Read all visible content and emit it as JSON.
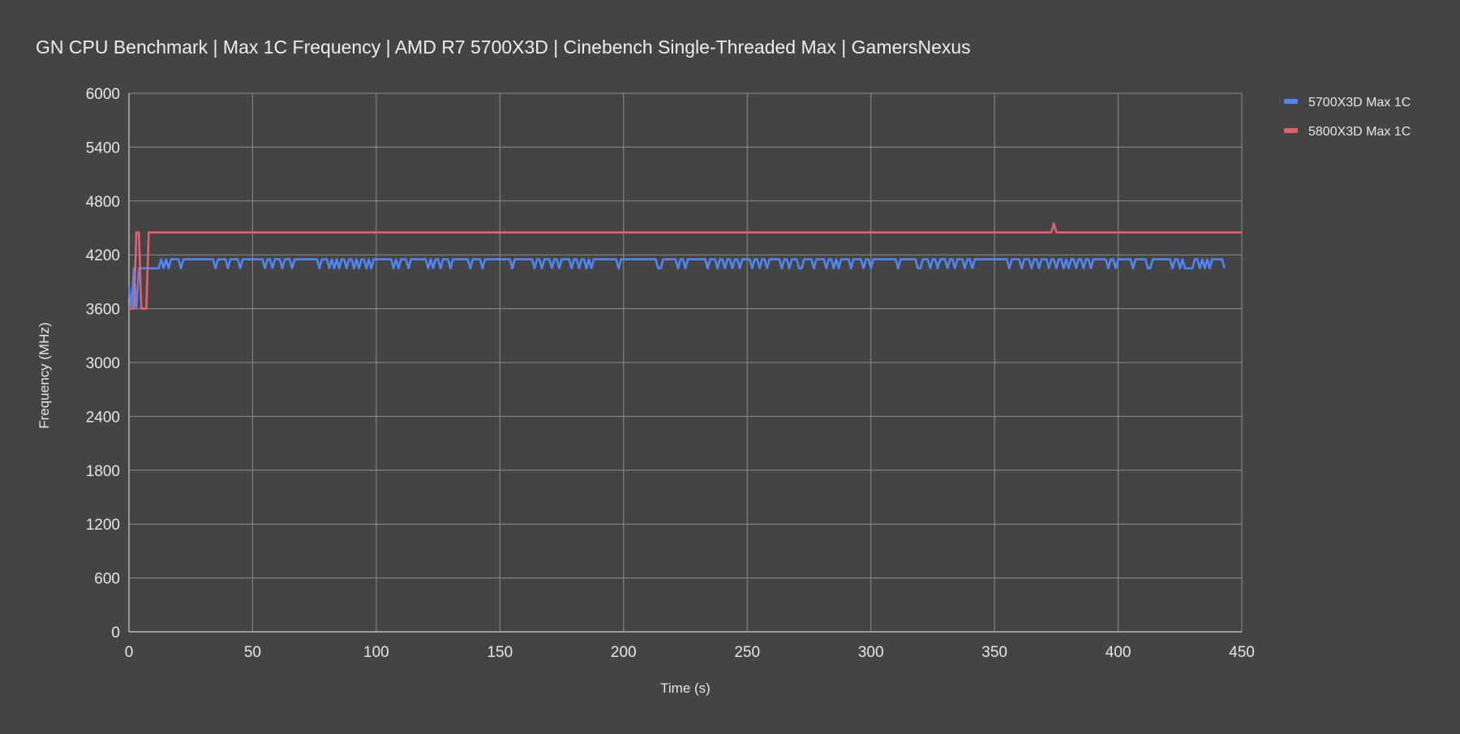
{
  "chart_data": {
    "type": "line",
    "title": "GN CPU Benchmark | Max 1C Frequency | AMD R7 5700X3D | Cinebench Single-Threaded Max | GamersNexus",
    "xlabel": "Time (s)",
    "ylabel": "Frequency (MHz)",
    "xlim": [
      0,
      450
    ],
    "ylim": [
      0,
      6000
    ],
    "x_ticks": [
      0,
      50,
      100,
      150,
      200,
      250,
      300,
      350,
      400,
      450
    ],
    "y_ticks": [
      0,
      600,
      1200,
      1800,
      2400,
      3000,
      3600,
      4200,
      4800,
      5400,
      6000
    ],
    "grid": true,
    "legend_position": "top-right",
    "series": [
      {
        "name": "5700X3D Max 1C",
        "color": "#4f86f7",
        "x_start": 0,
        "x_step": 1,
        "values": [
          3850,
          3600,
          4050,
          3600,
          4050,
          4050,
          4050,
          4050,
          4050,
          4050,
          4050,
          4050,
          4050,
          4150,
          4050,
          4150,
          4050,
          4150,
          4150,
          4150,
          4150,
          4050,
          4150,
          4150,
          4150,
          4150,
          4150,
          4150,
          4150,
          4150,
          4150,
          4150,
          4150,
          4150,
          4150,
          4050,
          4150,
          4150,
          4150,
          4150,
          4050,
          4150,
          4150,
          4150,
          4150,
          4050,
          4150,
          4150,
          4150,
          4150,
          4150,
          4150,
          4150,
          4150,
          4150,
          4050,
          4150,
          4150,
          4050,
          4150,
          4150,
          4150,
          4050,
          4150,
          4150,
          4150,
          4050,
          4150,
          4150,
          4150,
          4150,
          4150,
          4150,
          4150,
          4150,
          4150,
          4150,
          4050,
          4150,
          4150,
          4150,
          4050,
          4150,
          4050,
          4150,
          4050,
          4150,
          4150,
          4050,
          4150,
          4150,
          4050,
          4150,
          4050,
          4150,
          4150,
          4050,
          4150,
          4050,
          4150,
          4150,
          4150,
          4150,
          4150,
          4150,
          4150,
          4150,
          4050,
          4150,
          4050,
          4150,
          4150,
          4150,
          4050,
          4150,
          4150,
          4150,
          4150,
          4150,
          4150,
          4150,
          4050,
          4150,
          4050,
          4150,
          4150,
          4050,
          4150,
          4150,
          4150,
          4050,
          4150,
          4150,
          4150,
          4150,
          4150,
          4150,
          4150,
          4050,
          4150,
          4150,
          4150,
          4150,
          4050,
          4150,
          4150,
          4150,
          4150,
          4150,
          4150,
          4150,
          4150,
          4150,
          4150,
          4150,
          4050,
          4150,
          4150,
          4150,
          4150,
          4150,
          4150,
          4150,
          4150,
          4050,
          4150,
          4150,
          4050,
          4150,
          4150,
          4150,
          4050,
          4150,
          4150,
          4050,
          4150,
          4150,
          4150,
          4150,
          4050,
          4150,
          4150,
          4050,
          4150,
          4150,
          4050,
          4150,
          4050,
          4150,
          4150,
          4150,
          4150,
          4150,
          4150,
          4150,
          4150,
          4150,
          4150,
          4050,
          4150,
          4150,
          4150,
          4150,
          4150,
          4150,
          4150,
          4150,
          4150,
          4150,
          4150,
          4150,
          4150,
          4150,
          4150,
          4050,
          4050,
          4150,
          4150,
          4150,
          4150,
          4150,
          4150,
          4050,
          4150,
          4150,
          4050,
          4150,
          4150,
          4150,
          4150,
          4150,
          4150,
          4150,
          4150,
          4050,
          4150,
          4150,
          4150,
          4050,
          4150,
          4150,
          4050,
          4150,
          4150,
          4050,
          4150,
          4150,
          4050,
          4150,
          4150,
          4150,
          4150,
          4050,
          4150,
          4150,
          4050,
          4150,
          4150,
          4050,
          4150,
          4150,
          4150,
          4150,
          4150,
          4050,
          4150,
          4150,
          4050,
          4150,
          4150,
          4150,
          4050,
          4050,
          4150,
          4150,
          4150,
          4150,
          4050,
          4150,
          4150,
          4150,
          4150,
          4050,
          4150,
          4150,
          4050,
          4150,
          4050,
          4150,
          4150,
          4150,
          4150,
          4050,
          4150,
          4150,
          4150,
          4150,
          4050,
          4150,
          4150,
          4050,
          4150,
          4150,
          4150,
          4150,
          4150,
          4150,
          4150,
          4150,
          4150,
          4150,
          4050,
          4150,
          4150,
          4150,
          4150,
          4150,
          4150,
          4150,
          4050,
          4050,
          4150,
          4150,
          4150,
          4050,
          4150,
          4150,
          4050,
          4150,
          4150,
          4150,
          4050,
          4150,
          4150,
          4050,
          4150,
          4150,
          4150,
          4050,
          4150,
          4150,
          4050,
          4150,
          4150,
          4150,
          4150,
          4150,
          4150,
          4150,
          4150,
          4150,
          4150,
          4150,
          4150,
          4150,
          4150,
          4050,
          4150,
          4150,
          4150,
          4150,
          4050,
          4150,
          4150,
          4150,
          4050,
          4150,
          4150,
          4050,
          4150,
          4150,
          4150,
          4050,
          4150,
          4150,
          4050,
          4150,
          4150,
          4050,
          4150,
          4050,
          4150,
          4150,
          4050,
          4150,
          4150,
          4050,
          4150,
          4150,
          4050,
          4150,
          4150,
          4150,
          4150,
          4150,
          4150,
          4050,
          4150,
          4150,
          4050,
          4150,
          4150,
          4150,
          4150,
          4150,
          4150,
          4050,
          4150,
          4150,
          4150,
          4150,
          4150,
          4050,
          4050,
          4150,
          4150,
          4150,
          4150,
          4150,
          4150,
          4150,
          4150,
          4050,
          4150,
          4150,
          4050,
          4150,
          4050,
          4050,
          4050,
          4050,
          4150,
          4150,
          4050,
          4150,
          4050,
          4150,
          4050,
          4150,
          4150,
          4150,
          4150,
          4150,
          4050
        ]
      },
      {
        "name": "5800X3D Max 1C",
        "color": "#e0636d",
        "x": [
          0,
          2,
          3,
          4,
          5,
          7,
          8,
          373,
          374,
          375,
          450
        ],
        "values": [
          3600,
          3600,
          4450,
          4450,
          3600,
          3600,
          4450,
          4450,
          4550,
          4450,
          4450
        ]
      }
    ]
  }
}
